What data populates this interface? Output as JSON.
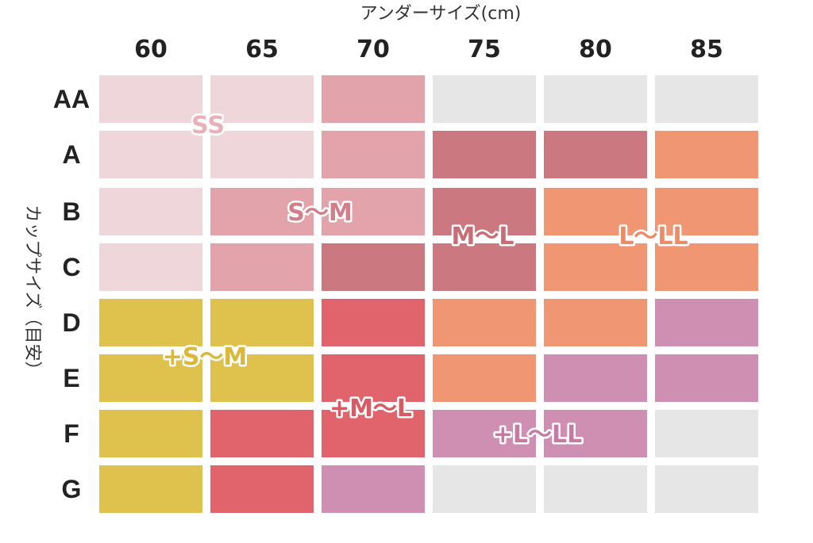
{
  "chart_data": {
    "type": "heatmap",
    "title": "",
    "xlabel": "アンダーサイズ(cm)",
    "ylabel": "カップサイズ（目安）",
    "columns": [
      "60",
      "65",
      "70",
      "75",
      "80",
      "85"
    ],
    "rows": [
      "AA",
      "A",
      "B",
      "C",
      "D",
      "E",
      "F",
      "G"
    ],
    "cells": [
      [
        "SS",
        "SS",
        "S~M",
        "",
        "",
        ""
      ],
      [
        "SS",
        "SS",
        "S~M",
        "M~L",
        "M~L",
        "L~LL"
      ],
      [
        "SS",
        "S~M",
        "S~M",
        "M~L",
        "L~LL",
        "L~LL"
      ],
      [
        "SS",
        "S~M",
        "M~L",
        "M~L",
        "L~LL",
        "L~LL"
      ],
      [
        "+S~M",
        "+S~M",
        "+M~L",
        "L~LL",
        "L~LL",
        "+L~LL"
      ],
      [
        "+S~M",
        "+S~M",
        "+M~L",
        "L~LL",
        "+L~LL",
        "+L~LL"
      ],
      [
        "+S~M",
        "+M~L",
        "+M~L",
        "+L~LL",
        "+L~LL",
        ""
      ],
      [
        "+S~M",
        "+M~L",
        "+L~LL",
        "",
        "",
        ""
      ]
    ],
    "zones": [
      {
        "label": "SS",
        "text": "SS",
        "color": "#efd6da",
        "text_color": "#e8b2bb"
      },
      {
        "label": "S~M",
        "text": "S〜M",
        "color": "#e2a4aa",
        "text_color": "#d27f8b"
      },
      {
        "label": "M~L",
        "text": "M〜L",
        "color": "#cc7880",
        "text_color": "#c96c76"
      },
      {
        "label": "L~LL",
        "text": "L〜LL",
        "color": "#f09673",
        "text_color": "#ea8c68"
      },
      {
        "label": "+S~M",
        "text": "+S〜M",
        "color": "#dfc24e",
        "text_color": "#d9b83a"
      },
      {
        "label": "+M~L",
        "text": "+M〜L",
        "color": "#e1646c",
        "text_color": "#d95a63"
      },
      {
        "label": "+L~LL",
        "text": "+L〜LL",
        "color": "#cf8fb2",
        "text_color": "#c57aa5"
      }
    ],
    "empty_color": "#e6e6e6"
  }
}
